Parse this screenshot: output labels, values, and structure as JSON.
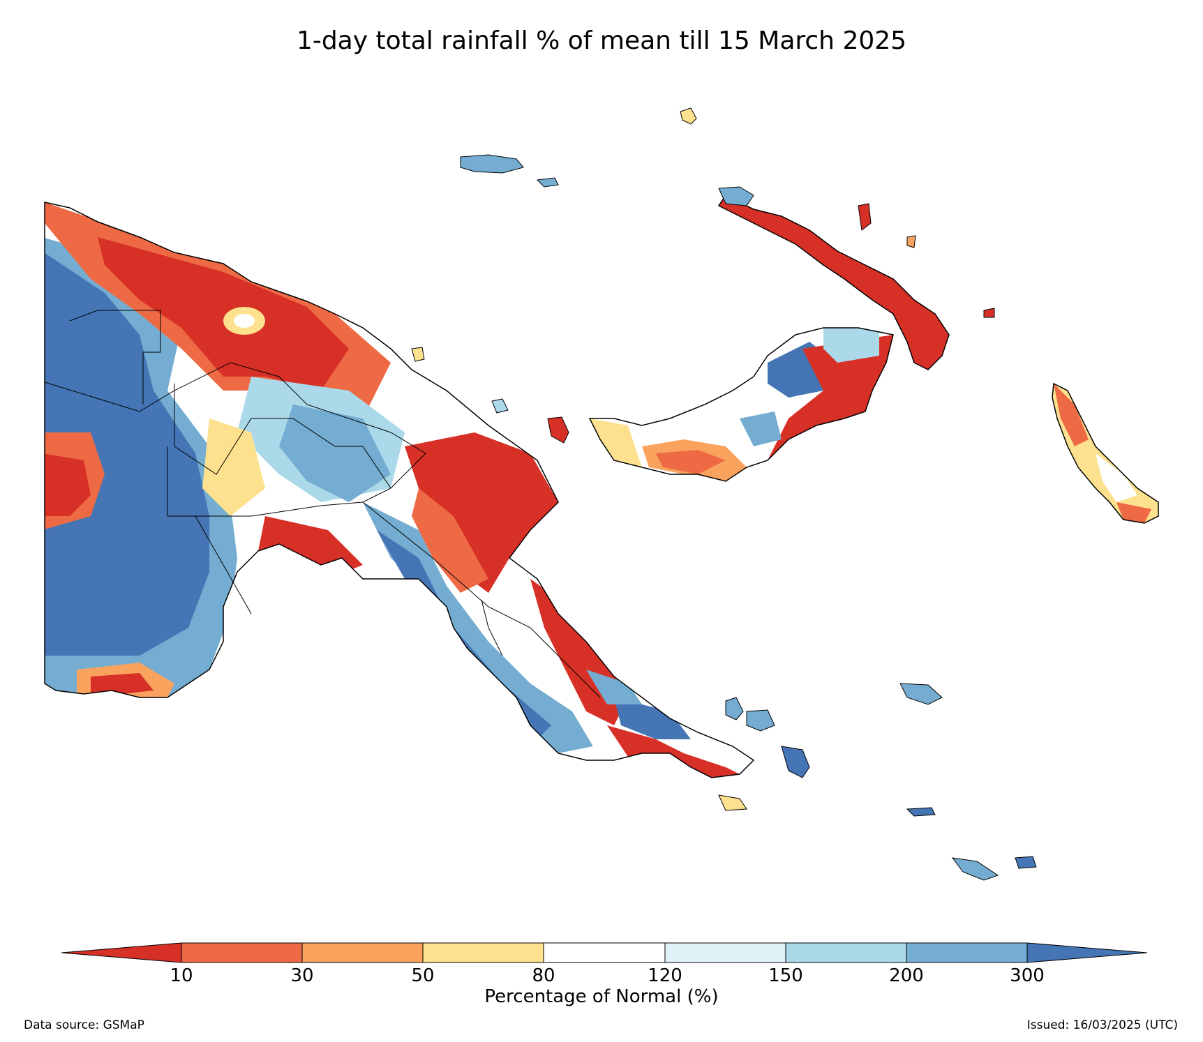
{
  "title": "1-day total rainfall % of mean till 15 March 2025",
  "colorbar": {
    "label": "Percentage of Normal (%)",
    "ticks": [
      "10",
      "30",
      "50",
      "80",
      "120",
      "150",
      "200",
      "300"
    ],
    "colors": [
      "#d73027",
      "#ee6a45",
      "#f9a35e",
      "#fde18f",
      "#ffffff",
      "#e0f3f8",
      "#abd9e9",
      "#74add1",
      "#4575b4"
    ]
  },
  "footer": {
    "source": "Data source: GSMaP",
    "issued": "Issued: 16/03/2025 (UTC)"
  },
  "palette": {
    "very_dry": "#d73027",
    "dry": "#ee6a45",
    "moderately_dry": "#f9a35e",
    "slightly_dry": "#fde18f",
    "normal": "#ffffff",
    "slightly_wet": "#e0f3f8",
    "wet": "#abd9e9",
    "very_wet": "#74add1",
    "extremely_wet": "#4575b4"
  }
}
